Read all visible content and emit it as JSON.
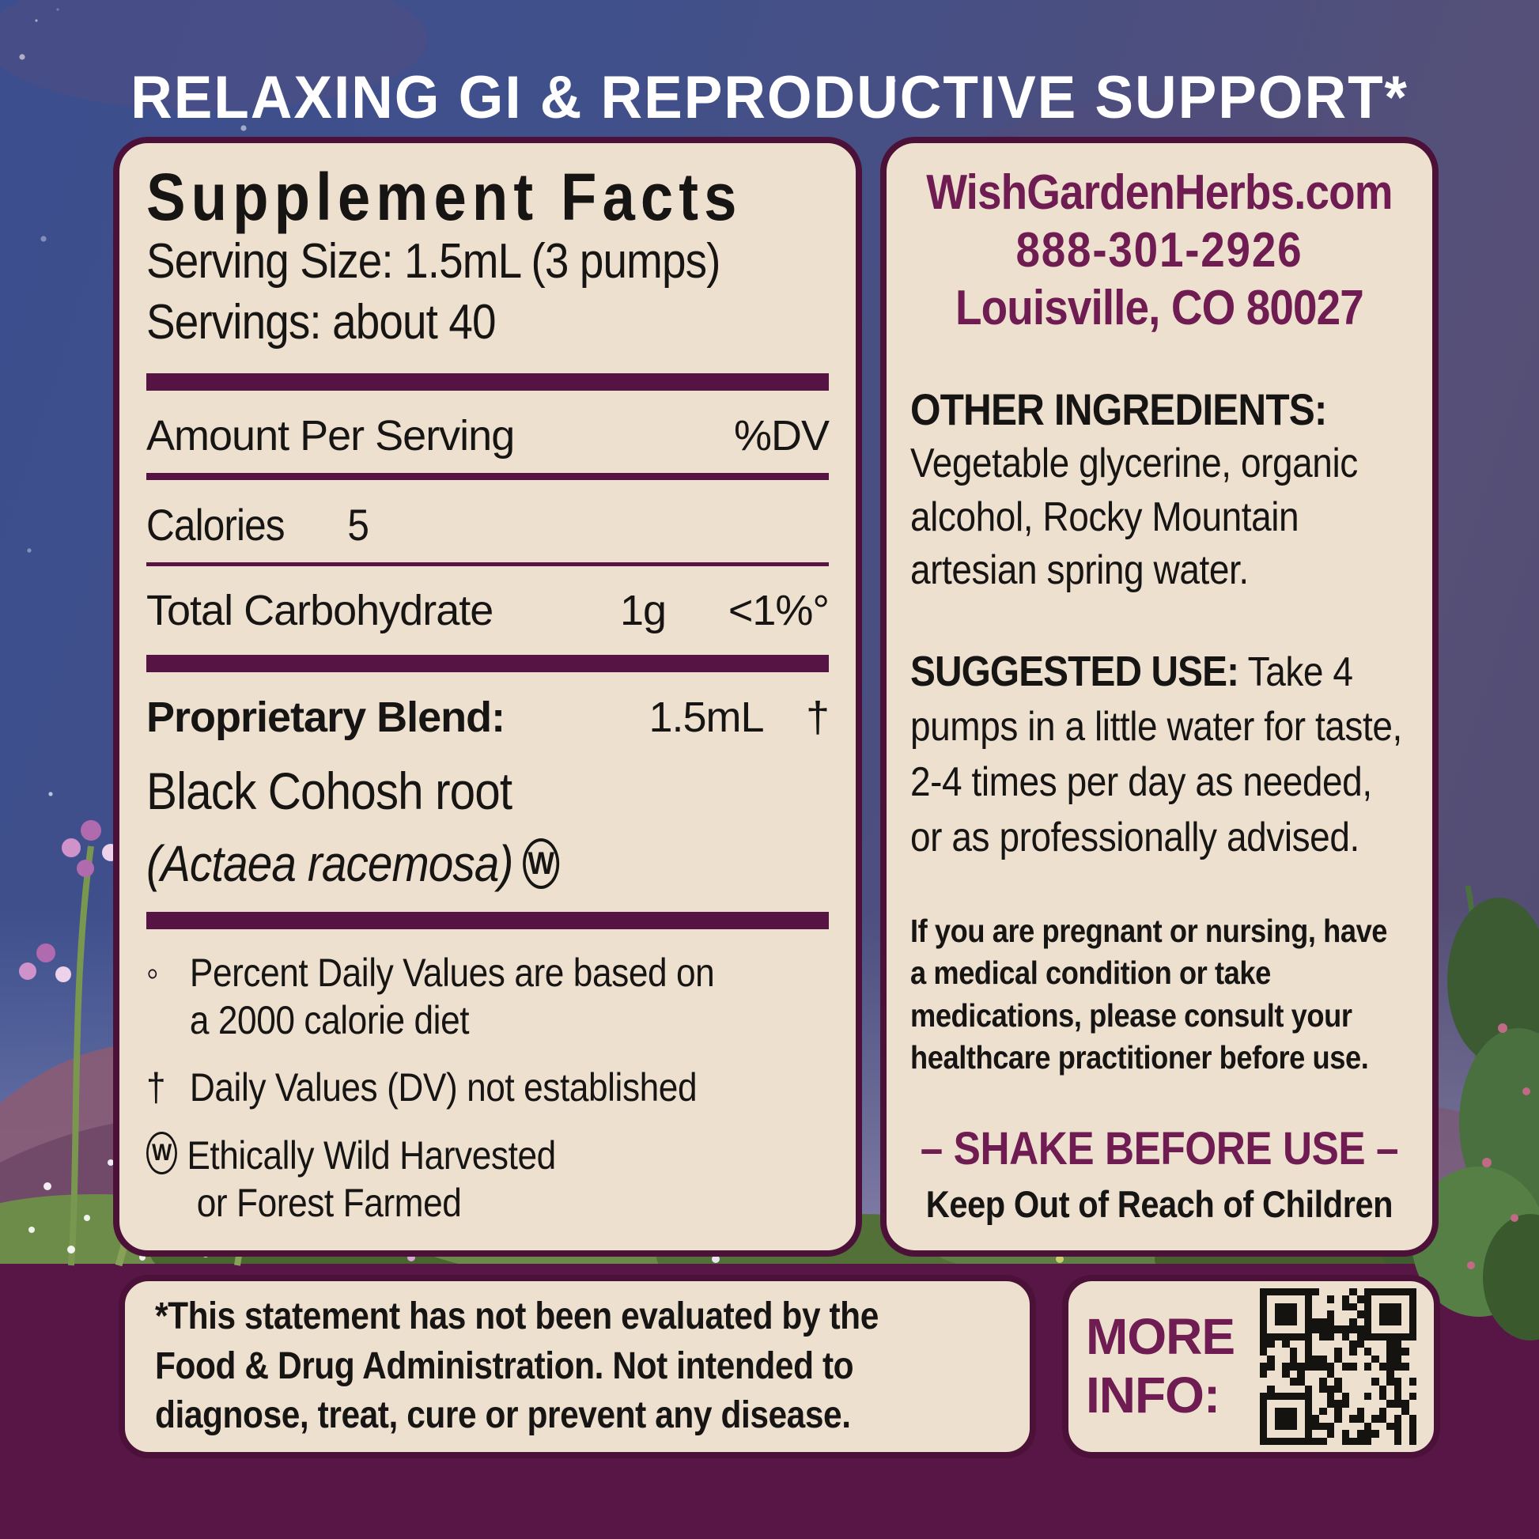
{
  "header": {
    "title": "RELAXING GI & REPRODUCTIVE SUPPORT*"
  },
  "supplement_facts": {
    "title": "Supplement Facts",
    "serving_size": "Serving Size: 1.5mL (3 pumps)",
    "servings": "Servings: about 40",
    "amount_per_serving": "Amount Per Serving",
    "dv_header": "%DV",
    "calories_label": "Calories",
    "calories_value": "5",
    "carb_label": "Total Carbohydrate",
    "carb_amount": "1g",
    "carb_dv": "<1%°",
    "blend_label": "Proprietary Blend:",
    "blend_amount": "1.5mL",
    "blend_dv": "†",
    "ingredient": "Black Cohosh root",
    "ingredient_latin": "(Actaea racemosa)",
    "wild_mark": "W",
    "footnotes": [
      {
        "sym": "◦",
        "line1": "Percent Daily Values are based on",
        "line2": "a 2000 calorie diet"
      },
      {
        "sym": "†",
        "line1": "Daily Values (DV) not established",
        "line2": ""
      },
      {
        "sym": "W",
        "line1": "Ethically Wild Harvested",
        "line2": "or Forest Farmed"
      }
    ]
  },
  "info_panel": {
    "website": "WishGardenHerbs.com",
    "phone": "888-301-2926",
    "address": "Louisville, CO 80027",
    "other_ingredients_label": "OTHER INGREDIENTS:",
    "other_ingredients_text": "Vegetable glycerine, organic alcohol, Rocky Mountain artesian spring water.",
    "suggested_use_label": "SUGGESTED USE:",
    "suggested_use_text": " Take 4 pumps in a little water for taste, 2-4 times per day as needed, or as professionally advised.",
    "warning": "If you are pregnant or nursing, have a medical condition or take medications, please consult your healthcare practitioner before use.",
    "shake": "– SHAKE BEFORE USE –",
    "keep_out": "Keep Out of Reach of Children"
  },
  "disclaimer": {
    "line1": "*This statement has not been evaluated by the",
    "line2": "Food & Drug Administration. Not intended to",
    "line3": "diagnose, treat, cure or prevent any disease."
  },
  "more_info": {
    "line1": "MORE",
    "line2": "INFO:"
  },
  "colors": {
    "panel_bg": "#eee0cf",
    "maroon_dark": "#4c1139",
    "maroon_bar": "#551444",
    "maroon_text": "#6e1c52",
    "ink": "#161514",
    "band": "#571646",
    "sky_blue": "#3f508d",
    "sky_purple": "#55507a"
  }
}
